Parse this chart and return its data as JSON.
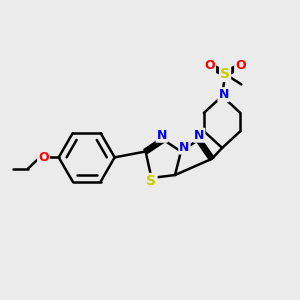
{
  "bg_color": "#ebebeb",
  "bond_color": "#000000",
  "n_color": "#0000ee",
  "o_color": "#ff0000",
  "s_color": "#cccc00",
  "line_width": 1.8,
  "figsize": [
    3.0,
    3.0
  ],
  "dpi": 100,
  "xlim": [
    0,
    10
  ],
  "ylim": [
    0,
    10
  ]
}
